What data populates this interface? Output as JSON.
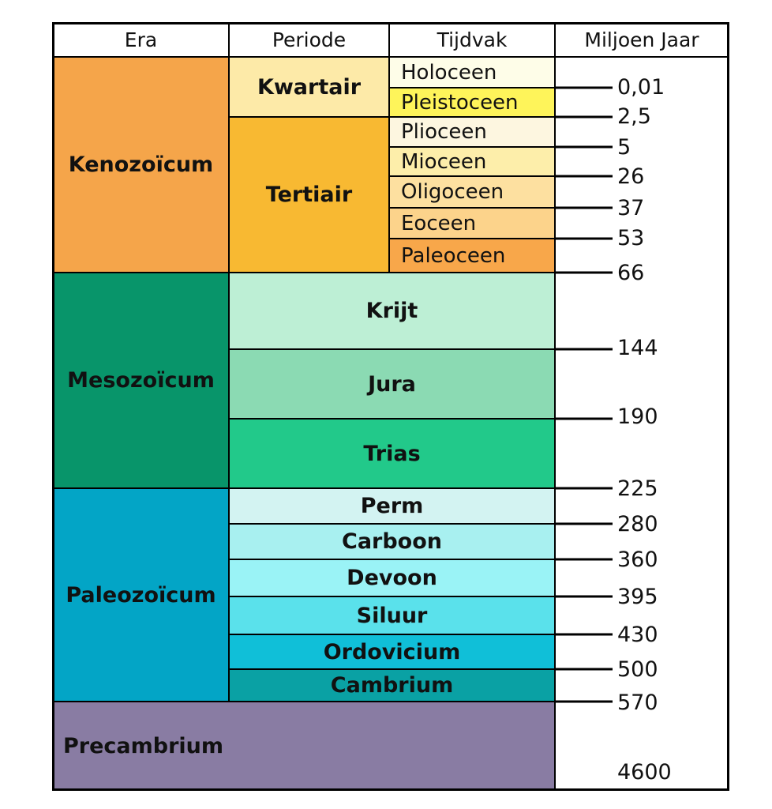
{
  "header": {
    "columns": [
      "Era",
      "Periode",
      "Tijdvak",
      "Miljoen Jaar"
    ]
  },
  "eras": [
    "Kenozoïcum",
    "Mesozoïcum",
    "Paleozoïcum",
    "Precambrium"
  ],
  "periods": [
    "Kwartair",
    "Tertiair",
    "Krijt",
    "Jura",
    "Trias",
    "Perm",
    "Carboon",
    "Devoon",
    "Siluur",
    "Ordovicium",
    "Cambrium"
  ],
  "epochs": [
    "Holoceen",
    "Pleistoceen",
    "Plioceen",
    "Mioceen",
    "Oligoceen",
    "Eoceen",
    "Paleoceen"
  ],
  "ages": [
    "0,01",
    "2,5",
    "5",
    "26",
    "37",
    "53",
    "66",
    "144",
    "190",
    "225",
    "280",
    "360",
    "395",
    "430",
    "500",
    "570",
    "4600"
  ]
}
